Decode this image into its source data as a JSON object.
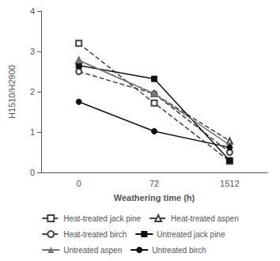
{
  "chart_data": {
    "type": "line",
    "xlabel": "Weathering time (h)",
    "ylabel": "H1510/H2900",
    "categories": [
      "0",
      "72",
      "1512"
    ],
    "series": [
      {
        "name": "Heat-treated jack pine",
        "color": "#444444",
        "line_style": "dashed",
        "marker": "square-open",
        "values": [
          3.2,
          1.72,
          0.28
        ]
      },
      {
        "name": "Heat-treated aspen",
        "color": "#444444",
        "line_style": "dashed",
        "marker": "triangle-open",
        "values": [
          2.78,
          1.95,
          0.78
        ]
      },
      {
        "name": "Heat-treated birch",
        "color": "#444444",
        "line_style": "dashed",
        "marker": "circle-open",
        "values": [
          2.5,
          1.95,
          0.5
        ]
      },
      {
        "name": "Untreated jack pine",
        "color": "#111111",
        "line_style": "solid",
        "marker": "square",
        "values": [
          2.65,
          2.32,
          0.3
        ]
      },
      {
        "name": "Untreated aspen",
        "color": "#777777",
        "line_style": "solid",
        "marker": "triangle",
        "values": [
          2.78,
          1.95,
          0.68
        ]
      },
      {
        "name": "Untreated birch",
        "color": "#111111",
        "line_style": "solid",
        "marker": "circle",
        "values": [
          1.75,
          1.02,
          0.62
        ]
      }
    ],
    "ylim": [
      0,
      4
    ],
    "yticks": [
      0,
      1,
      2,
      3,
      4
    ],
    "grid": false,
    "legend": "bottom"
  }
}
